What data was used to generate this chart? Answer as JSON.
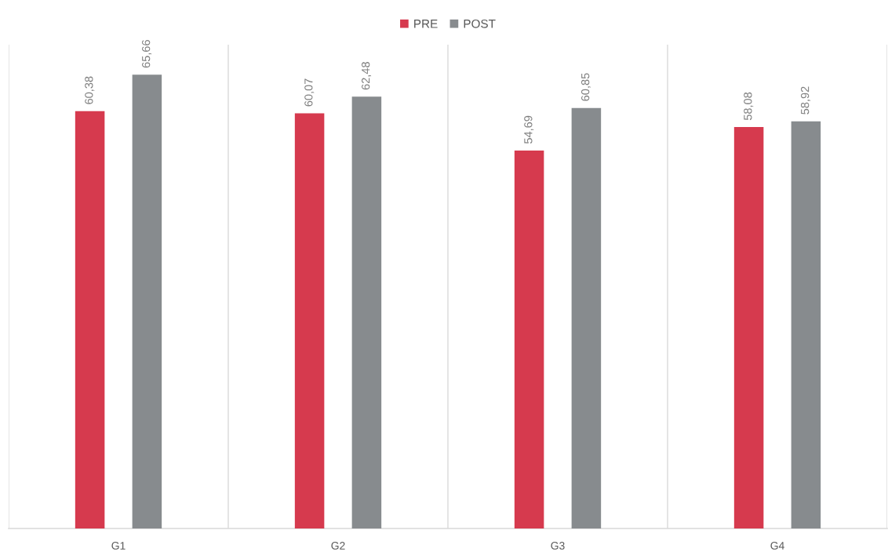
{
  "chart_data": {
    "type": "bar",
    "categories": [
      "G1",
      "G2",
      "G3",
      "G4"
    ],
    "series": [
      {
        "name": "PRE",
        "color": "#d63a4e",
        "values": [
          60.38,
          60.07,
          54.69,
          58.08
        ],
        "value_labels": [
          "60,38",
          "60,07",
          "54,69",
          "58,08"
        ]
      },
      {
        "name": "POST",
        "color": "#878b8e",
        "values": [
          65.66,
          62.48,
          60.85,
          58.92
        ],
        "value_labels": [
          "65,66",
          "62,48",
          "60,85",
          "58,92"
        ]
      }
    ],
    "ylim": [
      0,
      70
    ],
    "tick_labels": "x",
    "grid": "x",
    "legend": "top"
  }
}
